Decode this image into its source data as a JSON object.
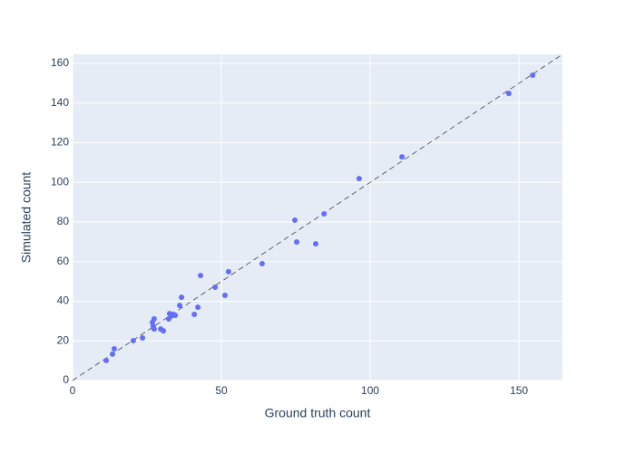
{
  "chart_data": {
    "type": "scatter",
    "x_label": "Ground truth count",
    "y_label": "Simulated count",
    "series": [
      {
        "color": "#636efa",
        "x": [
          11.3,
          13.4,
          14,
          20.4,
          23.5,
          26.8,
          27.4,
          27.1,
          27.4,
          29.6,
          30.5,
          32.3,
          32.6,
          33.2,
          33.8,
          34.5,
          36,
          36.6,
          40.9,
          42.1,
          43,
          47.9,
          51.2,
          52.4,
          63.7,
          74.7,
          75.3,
          81.7,
          84.5,
          96.3,
          110.7,
          146.6,
          154.6
        ],
        "values": [
          10.1,
          13.3,
          16,
          20.1,
          21.5,
          29.3,
          31.1,
          27.4,
          26,
          26,
          25.1,
          31.1,
          33.8,
          32.5,
          33.4,
          32.9,
          37.9,
          42,
          33.4,
          37,
          53,
          47.1,
          43,
          54.9,
          59,
          80.9,
          69.9,
          69,
          84.1,
          101.9,
          112.9,
          144.9,
          154.1
        ]
      }
    ],
    "xlim": [
      0,
      164.6
    ],
    "ylim": [
      0,
      164.6
    ],
    "xticks": [
      0,
      50,
      100,
      150
    ],
    "yticks": [
      0,
      20,
      40,
      60,
      80,
      100,
      120,
      140,
      160
    ],
    "grid": true
  }
}
